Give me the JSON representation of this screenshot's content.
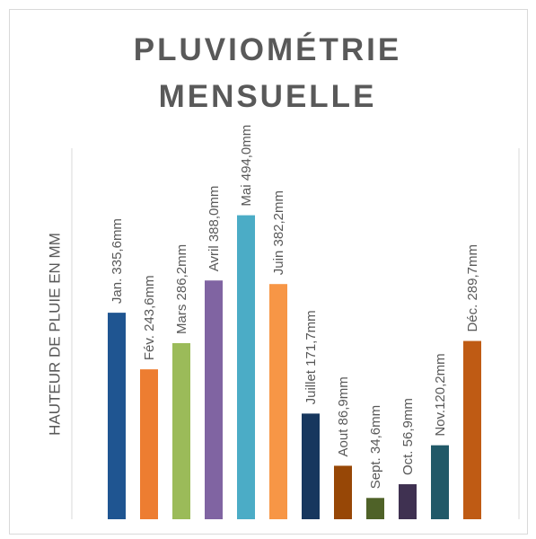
{
  "chart_data": {
    "type": "bar",
    "title": "PLUVIOMÉTRIE MENSUELLE",
    "y_label": "HAUTEUR DE PLUIE EN MM",
    "values": [
      335.6,
      243.6,
      286.2,
      388.0,
      494.0,
      382.2,
      171.7,
      86.9,
      34.6,
      56.9,
      120.2,
      289.7
    ],
    "value_labels": [
      "Jan. 335,6mm",
      "Fév. 243,6mm",
      "Mars 286,2mm",
      "Avril 388,0mm",
      "Mai 494,0mm",
      "Juin 382,2mm",
      "Juillet 171,7mm",
      "Aout 86,9mm",
      "Sept. 34,6mm",
      "Oct. 56,9mm",
      "Nov.120,2mm",
      "Déc. 289,7mm"
    ],
    "colors": [
      "#1f5591",
      "#ed7d31",
      "#9bbb59",
      "#8064a2",
      "#4bacc6",
      "#f79646",
      "#17375e",
      "#974706",
      "#4f6228",
      "#3f3151",
      "#215968",
      "#bf5b14"
    ],
    "ylim": [
      0,
      600
    ]
  }
}
